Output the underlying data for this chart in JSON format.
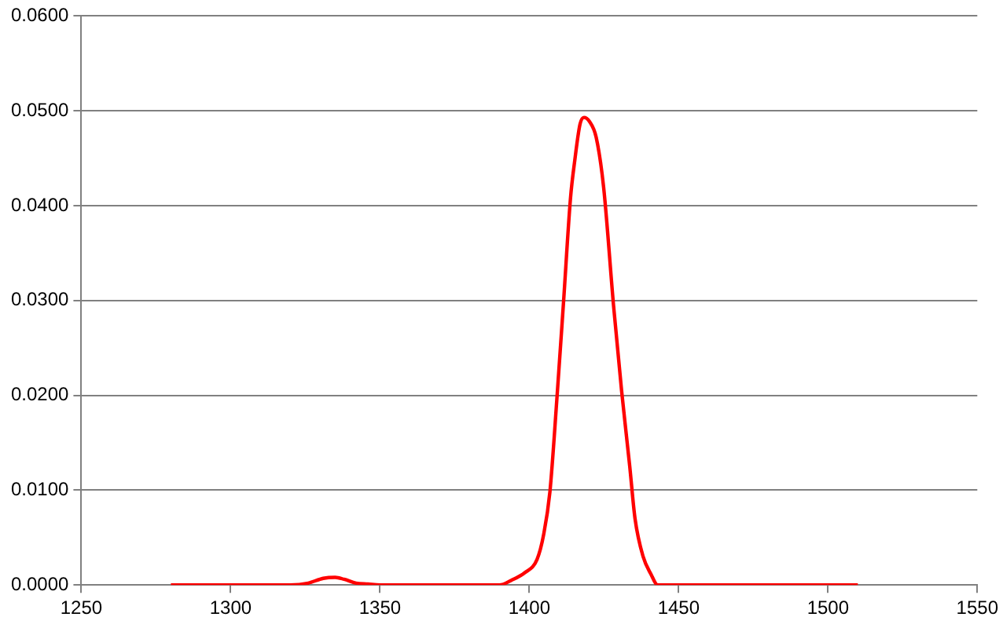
{
  "chart_data": {
    "type": "line",
    "x": [
      1280,
      1320,
      1326,
      1331,
      1335,
      1338,
      1342,
      1346,
      1350,
      1390,
      1394,
      1398.5,
      1402.6,
      1404.8,
      1406.9,
      1409.3,
      1411.5,
      1413.8,
      1415.2,
      1417,
      1418.3,
      1420.1,
      1422.4,
      1424.9,
      1428.2,
      1430.9,
      1433.6,
      1435.4,
      1438.1,
      1440.8,
      1443,
      1510
    ],
    "series": [
      {
        "color": "#ff0000",
        "values": [
          0,
          0,
          0.0002,
          0.0007,
          0.0008,
          0.0006,
          0.0002,
          0.0001,
          0,
          0,
          0.0005,
          0.0013,
          0.0027,
          0.0053,
          0.0098,
          0.0199,
          0.03,
          0.0408,
          0.0447,
          0.0486,
          0.0493,
          0.0489,
          0.0472,
          0.0419,
          0.0295,
          0.0205,
          0.0126,
          0.007,
          0.003,
          0.0011,
          0,
          0
        ]
      }
    ],
    "xlim": [
      1250,
      1550
    ],
    "xticks": [
      1250,
      1300,
      1350,
      1400,
      1450,
      1500,
      1550
    ],
    "ylim": [
      0,
      0.06
    ],
    "yticks": [
      {
        "value": 0,
        "label": "0.0000"
      },
      {
        "value": 0.01,
        "label": "0.0100"
      },
      {
        "value": 0.02,
        "label": "0.0200"
      },
      {
        "value": 0.03,
        "label": "0.0300"
      },
      {
        "value": 0.04,
        "label": "0.0400"
      },
      {
        "value": 0.05,
        "label": "0.0500"
      },
      {
        "value": 0.06,
        "label": "0.0600"
      }
    ],
    "grid": "y",
    "legend": false,
    "marker": "none",
    "line_style": "solid"
  }
}
